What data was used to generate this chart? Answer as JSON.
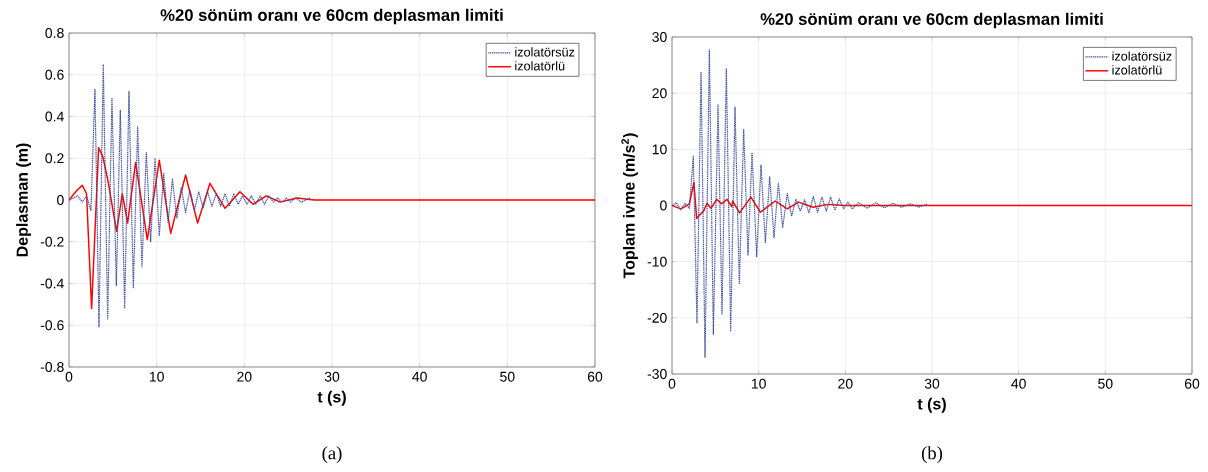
{
  "chart_data": [
    {
      "type": "line",
      "title": "%20 sönüm oranı ve 60cm deplasman limiti",
      "xlabel": "t (s)",
      "ylabel": "Deplasman (m)",
      "xlim": [
        0,
        60
      ],
      "ylim": [
        -0.8,
        0.8
      ],
      "xticks": [
        0,
        10,
        20,
        30,
        40,
        50,
        60
      ],
      "yticks": [
        -0.8,
        -0.6,
        -0.4,
        -0.2,
        0,
        0.2,
        0.4,
        0.6,
        0.8
      ],
      "grid": true,
      "legend": "top right",
      "annotations": [
        "(a)"
      ],
      "series": [
        {
          "name": "izolatörsüz",
          "color": "#3c4f96",
          "line_style": "dotted",
          "x": [
            0,
            0.5,
            1.0,
            1.5,
            2.0,
            2.5,
            2.96,
            3.42,
            3.91,
            4.41,
            4.9,
            5.4,
            5.85,
            6.35,
            6.84,
            7.34,
            7.83,
            8.32,
            8.82,
            9.31,
            9.81,
            10.3,
            10.8,
            11.3,
            11.8,
            12.3,
            12.8,
            13.3,
            13.8,
            14.3,
            14.8,
            15.3,
            15.8,
            16.3,
            16.8,
            17.3,
            17.8,
            18.3,
            18.8,
            19.3,
            19.8,
            20.3,
            20.8,
            21.3,
            21.8,
            22.3,
            22.8,
            23.3,
            23.8,
            24.3,
            24.8,
            25.3,
            25.8,
            26.5,
            27.5
          ],
          "values": [
            0,
            0.01,
            0.02,
            -0.01,
            0.02,
            -0.05,
            0.53,
            -0.61,
            0.65,
            -0.57,
            0.49,
            -0.41,
            0.43,
            -0.52,
            0.52,
            -0.42,
            0.35,
            -0.32,
            0.23,
            -0.2,
            0.2,
            -0.17,
            0.13,
            -0.11,
            0.1,
            -0.09,
            0.06,
            -0.06,
            0.05,
            -0.05,
            0.04,
            -0.04,
            0.04,
            -0.03,
            0.03,
            -0.03,
            0.03,
            -0.03,
            0.03,
            -0.02,
            0.02,
            -0.02,
            0.02,
            -0.02,
            0.02,
            -0.02,
            0.02,
            -0.01,
            0.01,
            -0.01,
            0.01,
            -0.01,
            0.01,
            -0.01,
            0.01
          ]
        },
        {
          "name": "izolatörlü",
          "color": "#ff0000",
          "line_style": "solid",
          "x": [
            0,
            0.38,
            1.0,
            1.52,
            2.0,
            2.58,
            3.38,
            3.84,
            4.41,
            5.43,
            6.08,
            6.69,
            7.6,
            8.93,
            10.3,
            11.6,
            13.3,
            14.67,
            16.08,
            17.8,
            19.5,
            21.0,
            22.5,
            24.1,
            26,
            28,
            60
          ],
          "values": [
            0,
            0.02,
            0.05,
            0.07,
            0.03,
            -0.52,
            0.25,
            0.21,
            0.1,
            -0.15,
            0.03,
            -0.11,
            0.18,
            -0.19,
            0.19,
            -0.16,
            0.12,
            -0.11,
            0.08,
            -0.04,
            0.04,
            -0.02,
            0.02,
            -0.01,
            0.01,
            0,
            0
          ]
        }
      ]
    },
    {
      "type": "line",
      "title": "%20 sönüm oranı ve 60cm deplasman limiti",
      "xlabel": "t (s)",
      "ylabel": "Toplam ivme (m/s$^{2}$)",
      "xlim": [
        0,
        60
      ],
      "ylim": [
        -30,
        30
      ],
      "xticks": [
        0,
        10,
        20,
        30,
        40,
        50,
        60
      ],
      "yticks": [
        -30,
        -20,
        -10,
        0,
        10,
        20,
        30
      ],
      "grid": true,
      "legend": "top right",
      "annotations": [
        "(b)"
      ],
      "series": [
        {
          "name": "izolatörsüz",
          "color": "#3c4f96",
          "line_style": "dotted",
          "x": [
            0,
            0.5,
            1.0,
            1.5,
            2.0,
            2.46,
            2.88,
            3.35,
            3.81,
            4.31,
            4.77,
            5.31,
            5.77,
            6.27,
            6.77,
            7.27,
            7.77,
            8.27,
            8.77,
            9.23,
            9.77,
            10.27,
            10.77,
            11.27,
            11.77,
            12.27,
            12.77,
            13.3,
            13.8,
            14.3,
            14.8,
            15.3,
            15.8,
            16.3,
            16.8,
            17.3,
            17.8,
            18.3,
            18.8,
            19.3,
            19.8,
            20.3,
            20.8,
            21.5,
            22.5,
            23.5,
            24.5,
            25.5,
            26.5,
            27.5,
            28.5,
            29.5
          ],
          "values": [
            0,
            0.5,
            -0.8,
            0.4,
            -0.5,
            8.8,
            -21.0,
            23.8,
            -27.0,
            27.7,
            -22.9,
            17.9,
            -19.3,
            24.4,
            -22.3,
            17.5,
            -14.0,
            13.6,
            -8.9,
            9.4,
            -9.1,
            7.2,
            -6.6,
            5.1,
            -5.7,
            4.0,
            -3.9,
            2.1,
            -1.9,
            1.1,
            -1.0,
            1.0,
            -1.3,
            1.6,
            -1.2,
            1.5,
            -1.0,
            1.5,
            -0.8,
            1.2,
            -0.6,
            0.6,
            -0.6,
            0.5,
            -0.5,
            0.5,
            -0.4,
            0.4,
            -0.3,
            0.3,
            -0.3,
            0.3
          ]
        },
        {
          "name": "izolatörlü",
          "color": "#ff0000",
          "line_style": "solid",
          "x": [
            0,
            0.5,
            1.0,
            1.5,
            2.0,
            2.53,
            2.84,
            3.3,
            3.65,
            4.04,
            4.5,
            5.15,
            5.7,
            6.35,
            6.9,
            7.0,
            7.8,
            9.1,
            10.2,
            11.9,
            13.3,
            14.6,
            16.3,
            18,
            20,
            60
          ],
          "values": [
            0,
            -0.3,
            -0.6,
            -0.2,
            0.3,
            4.1,
            -2.3,
            -1.5,
            -1.0,
            0.4,
            -0.5,
            1.1,
            0.3,
            1.1,
            -0.2,
            0.8,
            -1.3,
            1.5,
            -1.2,
            0.8,
            -0.6,
            0.6,
            -0.3,
            0.2,
            0,
            0
          ]
        }
      ]
    }
  ]
}
